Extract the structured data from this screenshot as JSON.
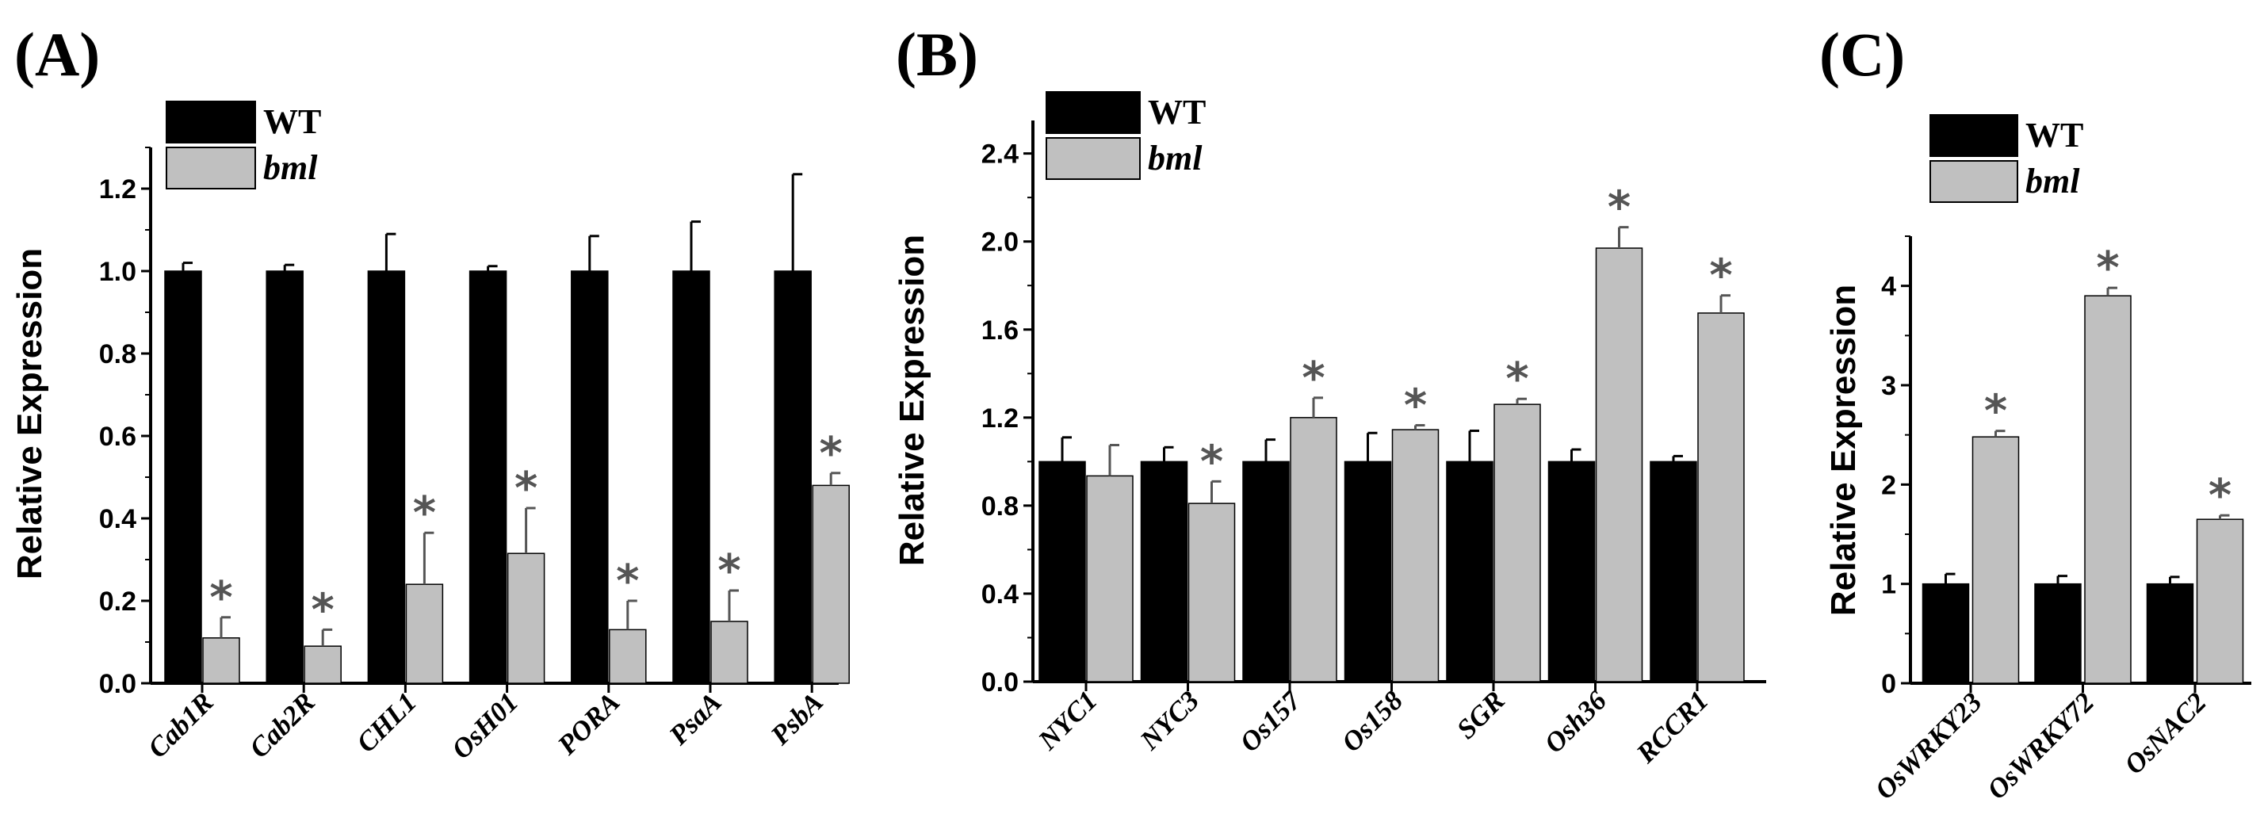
{
  "colors": {
    "wt": "#000000",
    "bml": "#c0c0c0",
    "axis": "#000000",
    "star": "#555555"
  },
  "chart_data": [
    {
      "type": "bar",
      "panel_label": "(A)",
      "ylabel": "Relative Expression",
      "ylim": [
        0,
        1.3
      ],
      "yticks": [
        "0.0",
        "0.2",
        "0.4",
        "0.6",
        "0.8",
        "1.0",
        "1.2"
      ],
      "ytick_values": [
        0,
        0.2,
        0.4,
        0.6,
        0.8,
        1.0,
        1.2
      ],
      "categories": [
        "Cab1R",
        "Cab2R",
        "CHL1",
        "OsH01",
        "PORA",
        "PsaA",
        "PsbA"
      ],
      "legend": [
        "WT",
        "bml"
      ],
      "series": [
        {
          "name": "WT",
          "values": [
            1.0,
            1.0,
            1.0,
            1.0,
            1.0,
            1.0,
            1.0
          ],
          "errors": [
            0.02,
            0.015,
            0.09,
            0.012,
            0.085,
            0.12,
            0.235
          ]
        },
        {
          "name": "bml",
          "values": [
            0.11,
            0.09,
            0.24,
            0.315,
            0.13,
            0.15,
            0.48
          ],
          "errors": [
            0.05,
            0.04,
            0.125,
            0.11,
            0.07,
            0.075,
            0.03
          ]
        }
      ],
      "significance": [
        "*",
        "*",
        "*",
        "*",
        "*",
        "*",
        "*"
      ]
    },
    {
      "type": "bar",
      "panel_label": "(B)",
      "ylabel": "Relative Expression",
      "ylim": [
        0,
        2.55
      ],
      "yticks": [
        "0.0",
        "0.4",
        "0.8",
        "1.2",
        "1.6",
        "2.0",
        "2.4"
      ],
      "ytick_values": [
        0,
        0.4,
        0.8,
        1.2,
        1.6,
        2.0,
        2.4
      ],
      "categories": [
        "NYC1",
        "NYC3",
        "Os157",
        "Os158",
        "SGR",
        "Osh36",
        "RCCR1"
      ],
      "legend": [
        "WT",
        "bml"
      ],
      "series": [
        {
          "name": "WT",
          "values": [
            1.0,
            1.0,
            1.0,
            1.0,
            1.0,
            1.0,
            1.0
          ],
          "errors": [
            0.11,
            0.065,
            0.1,
            0.13,
            0.14,
            0.055,
            0.025
          ]
        },
        {
          "name": "bml",
          "values": [
            0.935,
            0.81,
            1.2,
            1.145,
            1.26,
            1.97,
            1.675
          ],
          "errors": [
            0.14,
            0.1,
            0.09,
            0.02,
            0.025,
            0.095,
            0.08
          ]
        }
      ],
      "significance": [
        "",
        "*",
        "*",
        "*",
        "*",
        "*",
        "*"
      ]
    },
    {
      "type": "bar",
      "panel_label": "(C)",
      "ylabel": "Relative Expression",
      "ylim": [
        0,
        4.5
      ],
      "yticks": [
        "0",
        "1",
        "2",
        "3",
        "4"
      ],
      "ytick_values": [
        0,
        1,
        2,
        3,
        4
      ],
      "categories": [
        "OsWRKY23",
        "OsWRKY72",
        "OsNAC2"
      ],
      "legend": [
        "WT",
        "bml"
      ],
      "series": [
        {
          "name": "WT",
          "values": [
            1.0,
            1.0,
            1.0
          ],
          "errors": [
            0.1,
            0.08,
            0.07
          ]
        },
        {
          "name": "bml",
          "values": [
            2.48,
            3.9,
            1.65
          ],
          "errors": [
            0.06,
            0.08,
            0.04
          ]
        }
      ],
      "significance": [
        "*",
        "*",
        "*"
      ]
    }
  ]
}
